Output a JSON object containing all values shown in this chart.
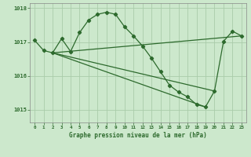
{
  "background_color": "#cce8cc",
  "plot_bg_color": "#cce8cc",
  "grid_color": "#aaccaa",
  "line_color": "#2d6a2d",
  "marker_color": "#2d6a2d",
  "xlabel": "Graphe pression niveau de la mer (hPa)",
  "ylim": [
    1014.62,
    1018.15
  ],
  "xlim": [
    -0.5,
    23.5
  ],
  "yticks": [
    1015,
    1016,
    1017,
    1018
  ],
  "xticks": [
    0,
    1,
    2,
    3,
    4,
    5,
    6,
    7,
    8,
    9,
    10,
    11,
    12,
    13,
    14,
    15,
    16,
    17,
    18,
    19,
    20,
    21,
    22,
    23
  ],
  "main_series": {
    "x": [
      0,
      1,
      2,
      3,
      4,
      5,
      6,
      7,
      8,
      9,
      10,
      11,
      12,
      13,
      14,
      15,
      16,
      17,
      18,
      19,
      20,
      21,
      22,
      23
    ],
    "y": [
      1017.05,
      1016.75,
      1016.68,
      1017.1,
      1016.72,
      1017.28,
      1017.65,
      1017.82,
      1017.88,
      1017.82,
      1017.45,
      1017.18,
      1016.88,
      1016.52,
      1016.12,
      1015.72,
      1015.52,
      1015.38,
      1015.15,
      1015.08,
      1015.55,
      1017.02,
      1017.32,
      1017.18
    ]
  },
  "straight_lines": [
    {
      "x": [
        2,
        23
      ],
      "y": [
        1016.68,
        1017.18
      ]
    },
    {
      "x": [
        2,
        20
      ],
      "y": [
        1016.68,
        1015.55
      ]
    },
    {
      "x": [
        2,
        19
      ],
      "y": [
        1016.68,
        1015.08
      ]
    }
  ]
}
